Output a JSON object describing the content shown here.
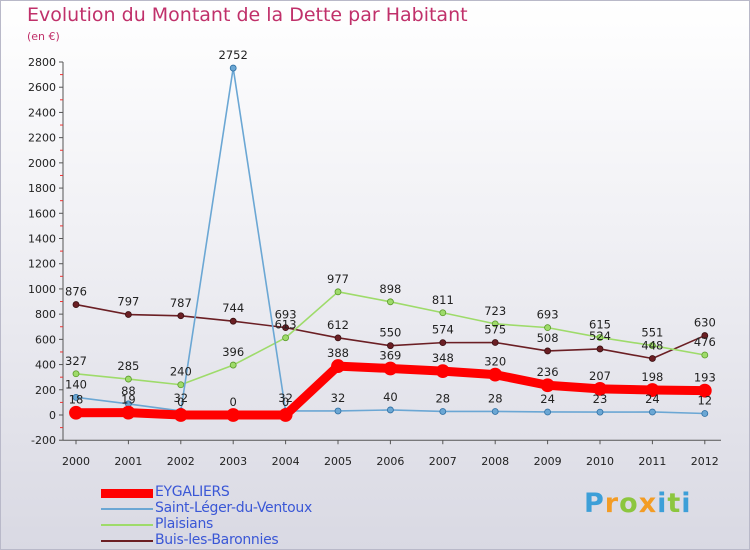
{
  "title": "Evolution du Montant de la Dette par Habitant",
  "subtitle": "(en €)",
  "logo": "Proxiti",
  "chart_data": {
    "type": "line",
    "x": [
      "2000",
      "2001",
      "2002",
      "2003",
      "2004",
      "2005",
      "2006",
      "2007",
      "2008",
      "2009",
      "2010",
      "2011",
      "2012"
    ],
    "ylim": [
      -200,
      2800
    ],
    "yticks": [
      -200,
      0,
      200,
      400,
      600,
      800,
      1000,
      1200,
      1400,
      1600,
      1800,
      2000,
      2200,
      2400,
      2600,
      2800
    ],
    "grid": false,
    "legend": "bottom-left",
    "series": [
      {
        "name": "Buis-les-Baronnies",
        "color": "#6b1f24",
        "values": [
          876,
          797,
          787,
          744,
          693,
          612,
          550,
          574,
          575,
          508,
          524,
          448,
          630
        ]
      },
      {
        "name": "Plaisians",
        "color": "#9edb6a",
        "values": [
          327,
          285,
          240,
          396,
          613,
          977,
          898,
          811,
          723,
          693,
          615,
          551,
          476
        ]
      },
      {
        "name": "Saint-Léger-du-Ventoux",
        "color": "#6ba7d4",
        "values": [
          140,
          88,
          32,
          2752,
          32,
          32,
          40,
          28,
          28,
          24,
          23,
          24,
          12
        ]
      },
      {
        "name": "EYGALIERS",
        "color": "#ff0000",
        "values": [
          18,
          19,
          0,
          0,
          0,
          388,
          369,
          348,
          320,
          236,
          207,
          198,
          193
        ]
      }
    ]
  }
}
